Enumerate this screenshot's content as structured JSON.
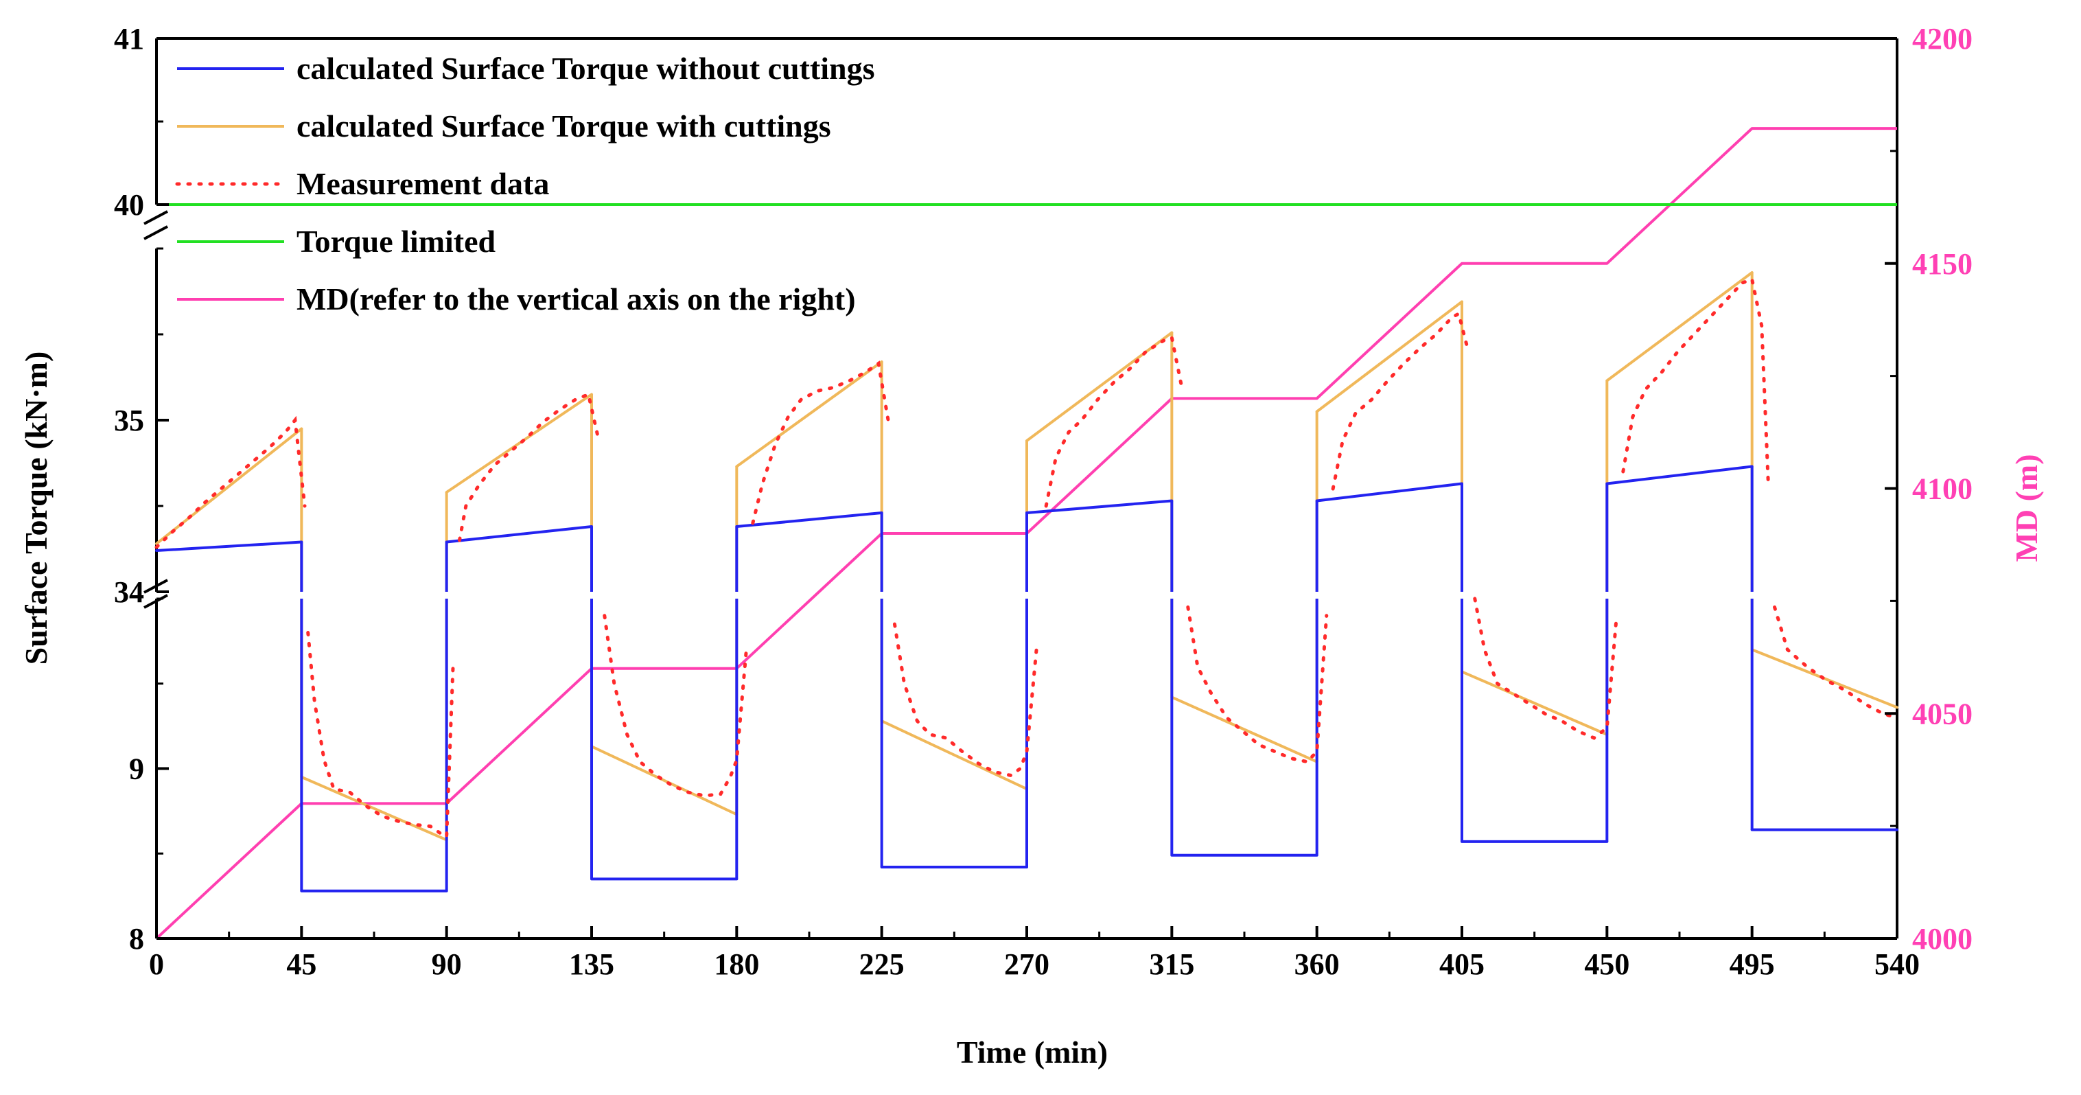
{
  "chart_data": {
    "type": "line",
    "xlabel": "Time (min)",
    "ylabel_left": "Surface Torque (kN·m)",
    "ylabel_right": "MD (m)",
    "x_range": [
      0,
      540
    ],
    "x_ticks": [
      0,
      45,
      90,
      135,
      180,
      225,
      270,
      315,
      360,
      405,
      450,
      495,
      540
    ],
    "left_axis_segments": [
      {
        "range": [
          8,
          10
        ],
        "ticks": [
          8,
          9
        ],
        "minor_step": 0.5
      },
      {
        "range": [
          34,
          36
        ],
        "ticks": [
          34,
          35
        ],
        "minor_step": 0.5
      },
      {
        "range": [
          40,
          41
        ],
        "ticks": [
          40,
          41
        ],
        "minor_step": 0.5
      }
    ],
    "right_axis": {
      "range": [
        4000,
        4200
      ],
      "ticks": [
        4000,
        4050,
        4100,
        4150,
        4200
      ],
      "minor_step": 25
    },
    "colors": {
      "blue": "#2323f0",
      "orange": "#f0b85a",
      "red": "#ff2a2a",
      "green": "#22e022",
      "magenta": "#ff3fb0",
      "right_axis": "#ff40b4"
    },
    "legend": [
      {
        "key": "without",
        "label": "calculated Surface Torque without cuttings",
        "style": "solid",
        "color": "#2323f0"
      },
      {
        "key": "with",
        "label": "calculated Surface Torque with cuttings",
        "style": "solid",
        "color": "#f0b85a"
      },
      {
        "key": "meas",
        "label": "Measurement data",
        "style": "dotted",
        "color": "#ff2a2a"
      },
      {
        "key": "limit",
        "label": "Torque limited",
        "style": "solid",
        "color": "#22e022"
      },
      {
        "key": "md",
        "label": "MD(refer to the vertical axis on the right)",
        "style": "solid",
        "color": "#ff3fb0"
      }
    ],
    "series": [
      {
        "name": "calculated Surface Torque without cuttings",
        "axis": "left",
        "rotating": [
          {
            "t0": 0,
            "t1": 45,
            "v0": 34.24,
            "v1": 34.29
          },
          {
            "t0": 90,
            "t1": 135,
            "v0": 34.29,
            "v1": 34.38
          },
          {
            "t0": 180,
            "t1": 225,
            "v0": 34.38,
            "v1": 34.46
          },
          {
            "t0": 270,
            "t1": 315,
            "v0": 34.46,
            "v1": 34.53
          },
          {
            "t0": 360,
            "t1": 405,
            "v0": 34.53,
            "v1": 34.63
          },
          {
            "t0": 450,
            "t1": 495,
            "v0": 34.63,
            "v1": 34.73
          }
        ],
        "sliding": [
          {
            "t0": 45,
            "t1": 90,
            "v": 8.28
          },
          {
            "t0": 135,
            "t1": 180,
            "v": 8.35
          },
          {
            "t0": 225,
            "t1": 270,
            "v": 8.42
          },
          {
            "t0": 315,
            "t1": 360,
            "v": 8.49
          },
          {
            "t0": 405,
            "t1": 450,
            "v": 8.57
          },
          {
            "t0": 495,
            "t1": 540,
            "v": 8.64
          }
        ]
      },
      {
        "name": "calculated Surface Torque with cuttings",
        "axis": "left",
        "rotating": [
          {
            "t0": 0,
            "t1": 45,
            "v0": 34.28,
            "v1": 34.95
          },
          {
            "t0": 90,
            "t1": 135,
            "v0": 34.58,
            "v1": 35.15
          },
          {
            "t0": 180,
            "t1": 225,
            "v0": 34.73,
            "v1": 35.34
          },
          {
            "t0": 270,
            "t1": 315,
            "v0": 34.88,
            "v1": 35.51
          },
          {
            "t0": 360,
            "t1": 405,
            "v0": 35.05,
            "v1": 35.69
          },
          {
            "t0": 450,
            "t1": 495,
            "v0": 35.23,
            "v1": 35.86
          }
        ],
        "sliding": [
          {
            "t0": 45,
            "t1": 90,
            "v0": 8.95,
            "v1": 8.58
          },
          {
            "t0": 135,
            "t1": 180,
            "v0": 9.13,
            "v1": 8.73
          },
          {
            "t0": 225,
            "t1": 270,
            "v0": 9.28,
            "v1": 8.88
          },
          {
            "t0": 315,
            "t1": 360,
            "v0": 9.42,
            "v1": 9.04
          },
          {
            "t0": 405,
            "t1": 450,
            "v0": 9.57,
            "v1": 9.2
          },
          {
            "t0": 495,
            "t1": 540,
            "v0": 9.7,
            "v1": 9.36
          }
        ]
      },
      {
        "name": "Measurement data",
        "axis": "left",
        "points": [
          [
            0,
            34.26
          ],
          [
            5,
            34.35
          ],
          [
            10,
            34.43
          ],
          [
            15,
            34.52
          ],
          [
            20,
            34.6
          ],
          [
            25,
            34.68
          ],
          [
            30,
            34.76
          ],
          [
            35,
            34.84
          ],
          [
            40,
            34.93
          ],
          [
            43,
            35.0
          ],
          [
            46,
            34.5
          ],
          [
            47,
            9.8
          ],
          [
            49,
            9.4
          ],
          [
            52,
            9.05
          ],
          [
            55,
            8.88
          ],
          [
            60,
            8.86
          ],
          [
            65,
            8.78
          ],
          [
            70,
            8.72
          ],
          [
            75,
            8.69
          ],
          [
            80,
            8.67
          ],
          [
            85,
            8.66
          ],
          [
            88,
            8.62
          ],
          [
            90,
            8.6
          ],
          [
            92,
            9.6
          ],
          [
            94,
            34.3
          ],
          [
            96,
            34.5
          ],
          [
            100,
            34.62
          ],
          [
            105,
            34.74
          ],
          [
            110,
            34.82
          ],
          [
            115,
            34.9
          ],
          [
            120,
            34.99
          ],
          [
            125,
            35.06
          ],
          [
            130,
            35.12
          ],
          [
            134,
            35.15
          ],
          [
            137,
            34.9
          ],
          [
            139,
            9.9
          ],
          [
            142,
            9.5
          ],
          [
            146,
            9.2
          ],
          [
            150,
            9.04
          ],
          [
            155,
            8.96
          ],
          [
            160,
            8.9
          ],
          [
            165,
            8.86
          ],
          [
            170,
            8.84
          ],
          [
            175,
            8.85
          ],
          [
            178,
            8.95
          ],
          [
            180,
            9.05
          ],
          [
            183,
            9.7
          ],
          [
            185,
            34.4
          ],
          [
            188,
            34.63
          ],
          [
            192,
            34.86
          ],
          [
            196,
            35.02
          ],
          [
            200,
            35.12
          ],
          [
            205,
            35.17
          ],
          [
            210,
            35.19
          ],
          [
            215,
            35.23
          ],
          [
            220,
            35.28
          ],
          [
            224,
            35.33
          ],
          [
            227,
            35.0
          ],
          [
            229,
            9.85
          ],
          [
            232,
            9.5
          ],
          [
            236,
            9.28
          ],
          [
            240,
            9.2
          ],
          [
            245,
            9.18
          ],
          [
            250,
            9.1
          ],
          [
            255,
            9.03
          ],
          [
            260,
            8.98
          ],
          [
            265,
            8.96
          ],
          [
            268,
            9.0
          ],
          [
            270,
            9.1
          ],
          [
            273,
            9.7
          ],
          [
            276,
            34.5
          ],
          [
            279,
            34.78
          ],
          [
            283,
            34.93
          ],
          [
            287,
            35.0
          ],
          [
            292,
            35.12
          ],
          [
            297,
            35.22
          ],
          [
            302,
            35.3
          ],
          [
            307,
            35.4
          ],
          [
            313,
            35.47
          ],
          [
            315,
            35.48
          ],
          [
            318,
            35.2
          ],
          [
            320,
            9.95
          ],
          [
            323,
            9.6
          ],
          [
            327,
            9.45
          ],
          [
            332,
            9.3
          ],
          [
            337,
            9.22
          ],
          [
            342,
            9.14
          ],
          [
            347,
            9.1
          ],
          [
            352,
            9.06
          ],
          [
            357,
            9.04
          ],
          [
            360,
            9.1
          ],
          [
            363,
            9.9
          ],
          [
            365,
            34.6
          ],
          [
            368,
            34.88
          ],
          [
            372,
            35.04
          ],
          [
            377,
            35.12
          ],
          [
            382,
            35.23
          ],
          [
            387,
            35.33
          ],
          [
            392,
            35.42
          ],
          [
            397,
            35.5
          ],
          [
            402,
            35.6
          ],
          [
            404,
            35.62
          ],
          [
            407,
            35.4
          ],
          [
            409,
            10.0
          ],
          [
            412,
            9.7
          ],
          [
            416,
            9.5
          ],
          [
            421,
            9.44
          ],
          [
            426,
            9.38
          ],
          [
            431,
            9.32
          ],
          [
            436,
            9.28
          ],
          [
            441,
            9.22
          ],
          [
            446,
            9.18
          ],
          [
            450,
            9.24
          ],
          [
            453,
            9.9
          ],
          [
            455,
            34.7
          ],
          [
            458,
            35.02
          ],
          [
            462,
            35.18
          ],
          [
            467,
            35.28
          ],
          [
            472,
            35.4
          ],
          [
            477,
            35.5
          ],
          [
            482,
            35.6
          ],
          [
            487,
            35.7
          ],
          [
            492,
            35.8
          ],
          [
            495,
            35.82
          ],
          [
            498,
            35.55
          ],
          [
            500,
            34.65
          ],
          [
            502,
            9.95
          ],
          [
            506,
            9.7
          ],
          [
            512,
            9.6
          ],
          [
            518,
            9.52
          ],
          [
            524,
            9.46
          ],
          [
            530,
            9.38
          ],
          [
            536,
            9.32
          ],
          [
            540,
            9.3
          ]
        ]
      },
      {
        "name": "Torque limited",
        "axis": "left",
        "points": [
          [
            0,
            40
          ],
          [
            540,
            40
          ]
        ]
      },
      {
        "name": "MD",
        "axis": "right",
        "points": [
          [
            0,
            4000
          ],
          [
            45,
            4030
          ],
          [
            90,
            4030
          ],
          [
            135,
            4060
          ],
          [
            180,
            4060
          ],
          [
            225,
            4090
          ],
          [
            270,
            4090
          ],
          [
            315,
            4120
          ],
          [
            360,
            4120
          ],
          [
            405,
            4150
          ],
          [
            450,
            4150
          ],
          [
            495,
            4180
          ],
          [
            540,
            4180
          ]
        ]
      }
    ]
  }
}
